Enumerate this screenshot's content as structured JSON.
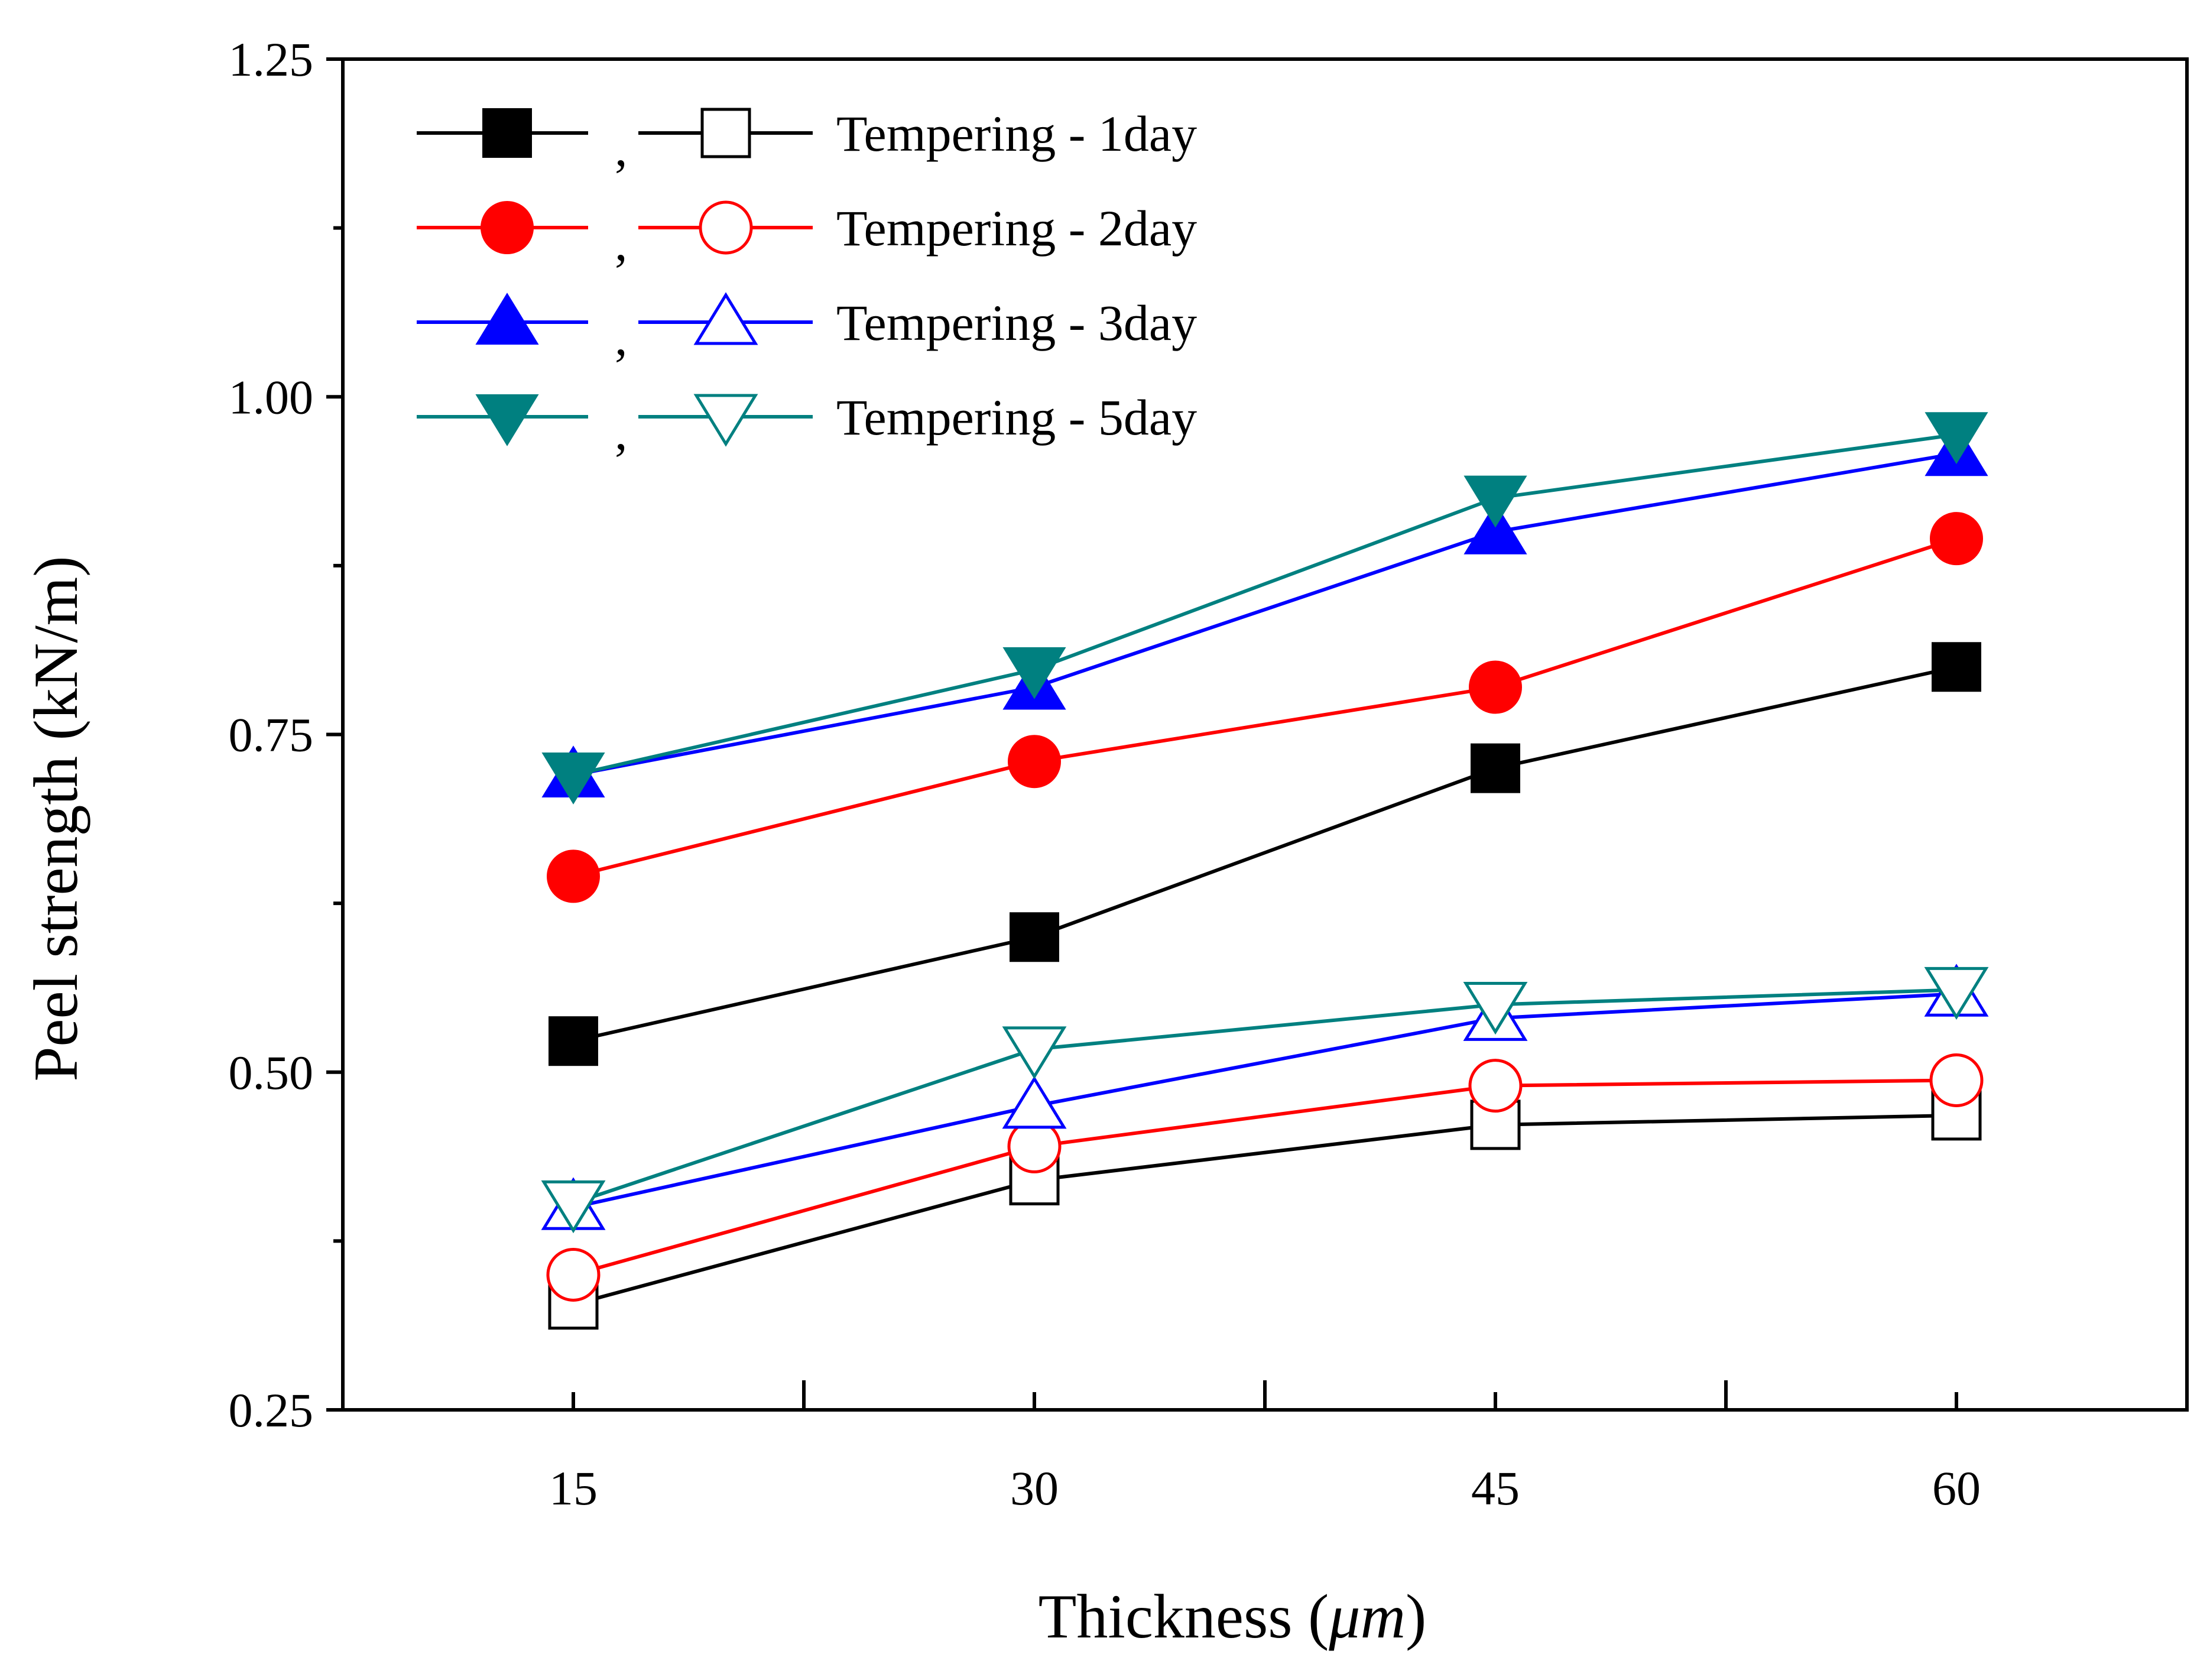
{
  "chart_data": {
    "type": "line",
    "xlabel": "Thickness (μm)",
    "xlabel_main": "Thickness (",
    "xlabel_unit": "μm",
    "xlabel_close": ")",
    "ylabel": "Peel strength (kN/m)",
    "xlim": [
      7.5,
      67.5
    ],
    "ylim": [
      0.25,
      1.25
    ],
    "x": [
      15,
      30,
      45,
      60
    ],
    "x_tick_labels": [
      "15",
      "30",
      "45",
      "60"
    ],
    "y_ticks": [
      0.25,
      0.5,
      0.75,
      1.0,
      1.25
    ],
    "y_tick_labels": [
      "0.25",
      "0.50",
      "0.75",
      "1.00",
      "1.25"
    ],
    "legend_position": "top-left",
    "legend_separator": ",",
    "legend": [
      {
        "label": "Tempering - 1day",
        "color": "#000000",
        "marker": "square"
      },
      {
        "label": "Tempering - 2day",
        "color": "#ff0000",
        "marker": "circle"
      },
      {
        "label": "Tempering - 3day",
        "color": "#0000ff",
        "marker": "triangle-up"
      },
      {
        "label": "Tempering - 5day",
        "color": "#008080",
        "marker": "triangle-down"
      }
    ],
    "series": [
      {
        "name": "Tempering - 1day (filled)",
        "color": "#000000",
        "marker": "square",
        "filled": true,
        "values": [
          0.523,
          0.6,
          0.725,
          0.8
        ]
      },
      {
        "name": "Tempering - 2day (filled)",
        "color": "#ff0000",
        "marker": "circle",
        "filled": true,
        "values": [
          0.645,
          0.73,
          0.785,
          0.895
        ]
      },
      {
        "name": "Tempering - 3day (filled)",
        "color": "#0000ff",
        "marker": "triangle-up",
        "filled": true,
        "values": [
          0.72,
          0.785,
          0.9,
          0.958
        ]
      },
      {
        "name": "Tempering - 5day (filled)",
        "color": "#008080",
        "marker": "triangle-down",
        "filled": true,
        "values": [
          0.72,
          0.798,
          0.925,
          0.972
        ]
      },
      {
        "name": "Tempering - 1day (open)",
        "color": "#000000",
        "marker": "square",
        "filled": false,
        "values": [
          0.328,
          0.42,
          0.461,
          0.468
        ]
      },
      {
        "name": "Tempering - 2day (open)",
        "color": "#ff0000",
        "marker": "circle",
        "filled": false,
        "values": [
          0.35,
          0.445,
          0.49,
          0.494
        ]
      },
      {
        "name": "Tempering - 3day (open)",
        "color": "#0000ff",
        "marker": "triangle-up",
        "filled": false,
        "values": [
          0.4,
          0.475,
          0.54,
          0.558
        ]
      },
      {
        "name": "Tempering - 5day (open)",
        "color": "#008080",
        "marker": "triangle-down",
        "filled": false,
        "values": [
          0.403,
          0.517,
          0.55,
          0.561
        ]
      }
    ]
  }
}
